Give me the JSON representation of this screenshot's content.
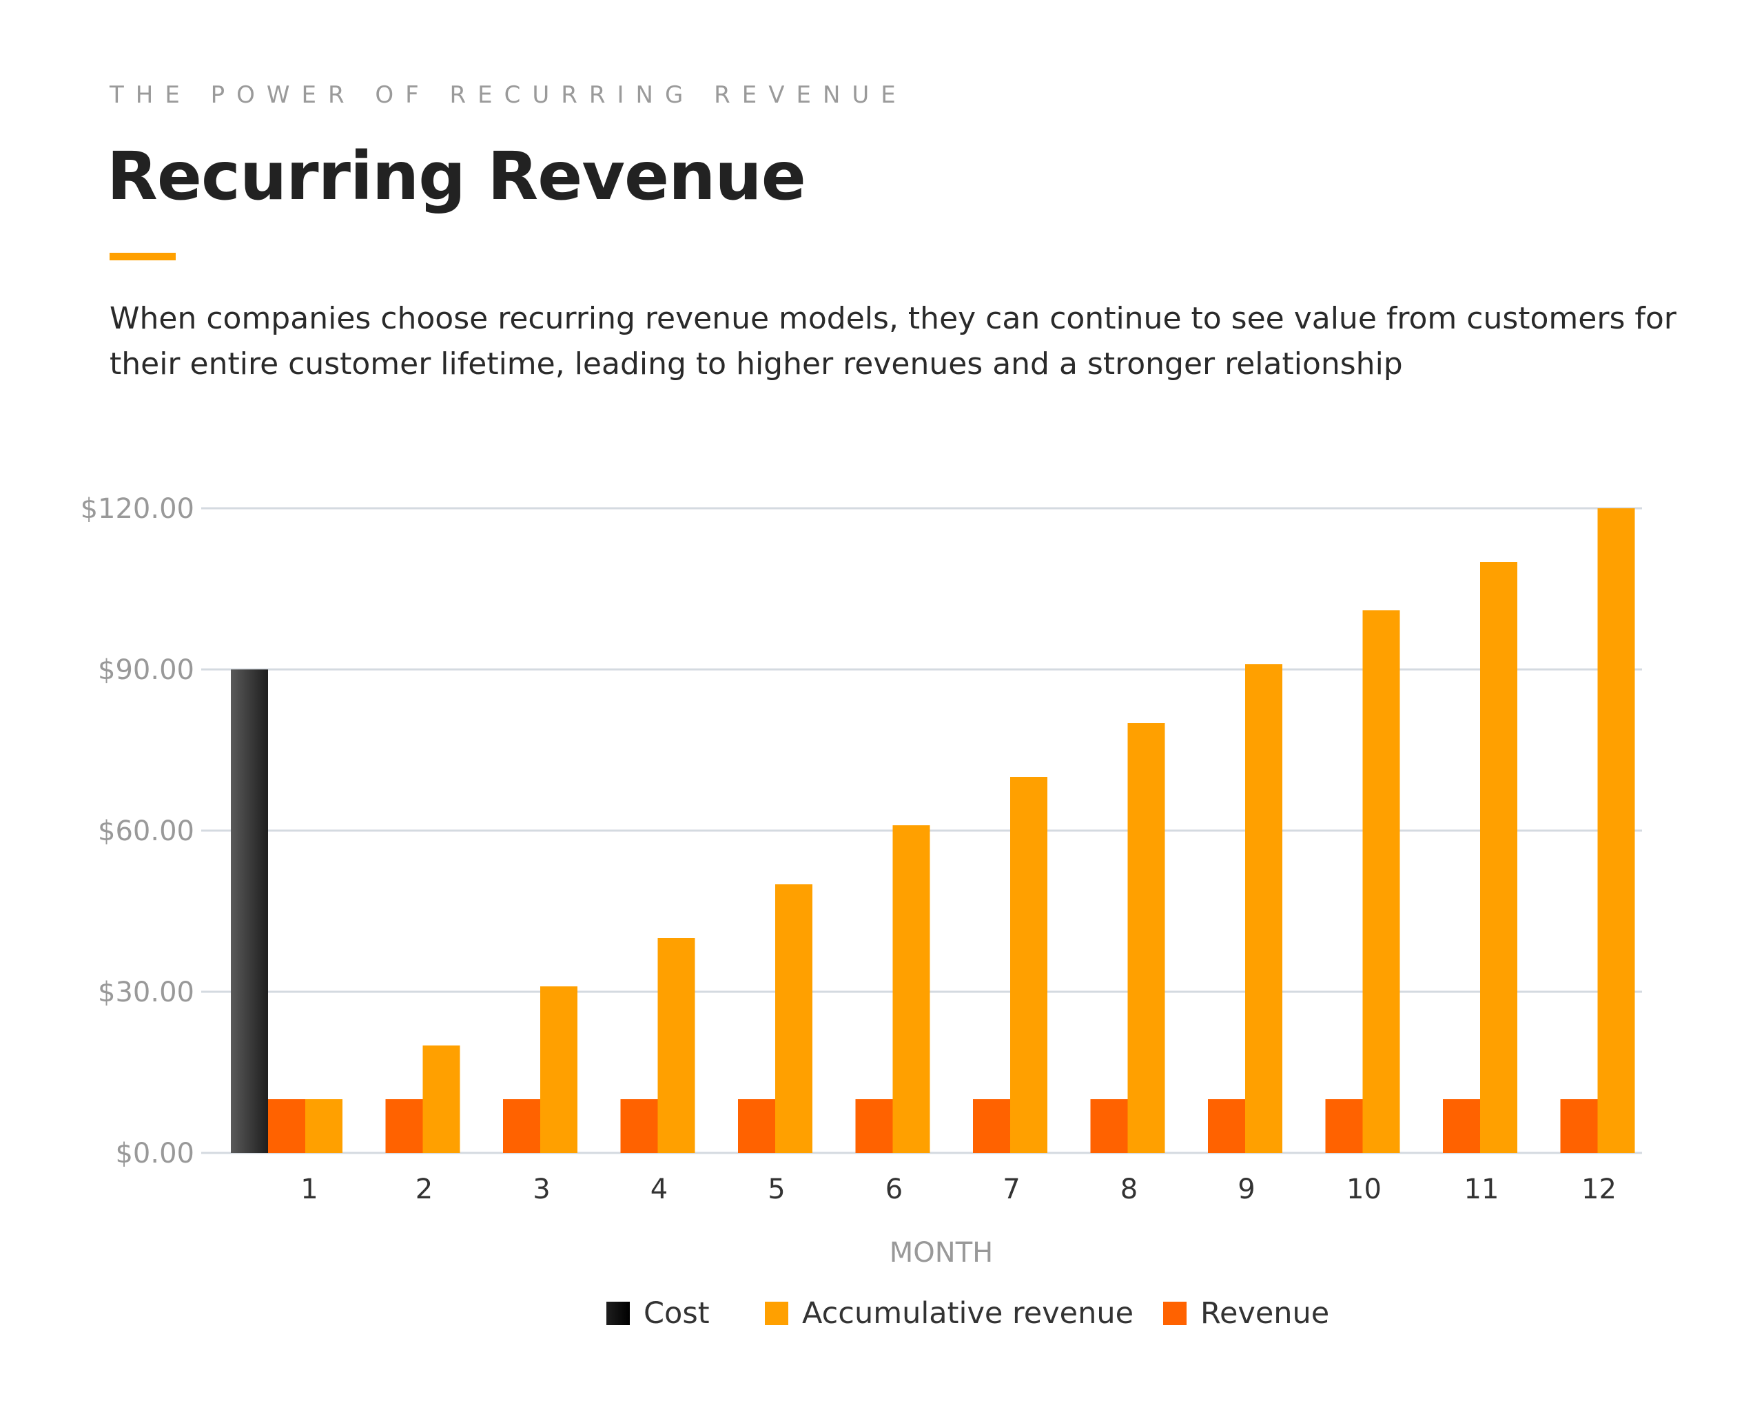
{
  "header": {
    "eyebrow": "THE POWER OF RECURRING REVENUE",
    "title": "Recurring Revenue",
    "description": "When companies choose recurring revenue models, they can continue to see value from customers for their entire customer lifetime, leading to higher revenues and a stronger relationship"
  },
  "colors": {
    "accent": "#ffa000",
    "cost_dark": "#1e1e1e",
    "cost_light": "#5a5a5a",
    "accumulative": "#ffa000",
    "revenue": "#ff6200",
    "grid": "#d4dae0",
    "axis_text": "#999999"
  },
  "chart_data": {
    "type": "bar",
    "title": "",
    "xlabel": "MONTH",
    "ylabel": "",
    "categories": [
      "1",
      "2",
      "3",
      "4",
      "5",
      "6",
      "7",
      "8",
      "9",
      "10",
      "11",
      "12"
    ],
    "ylim": [
      0,
      120
    ],
    "yticks": [
      0,
      30,
      60,
      90,
      120
    ],
    "ytick_labels": [
      "$0.00",
      "$30.00",
      "$60.00",
      "$90.00",
      "$120.00"
    ],
    "grid": true,
    "legend_position": "bottom",
    "series": [
      {
        "name": "Cost",
        "values": [
          90,
          null,
          null,
          null,
          null,
          null,
          null,
          null,
          null,
          null,
          null,
          null
        ]
      },
      {
        "name": "Revenue",
        "values": [
          10,
          10,
          10,
          10,
          10,
          10,
          10,
          10,
          10,
          10,
          10,
          10
        ]
      },
      {
        "name": "Accumulative revenue",
        "values": [
          10,
          20,
          31,
          40,
          50,
          61,
          70,
          80,
          91,
          101,
          110,
          120
        ]
      }
    ],
    "legend": [
      "Cost",
      "Accumulative revenue",
      "Revenue"
    ]
  }
}
